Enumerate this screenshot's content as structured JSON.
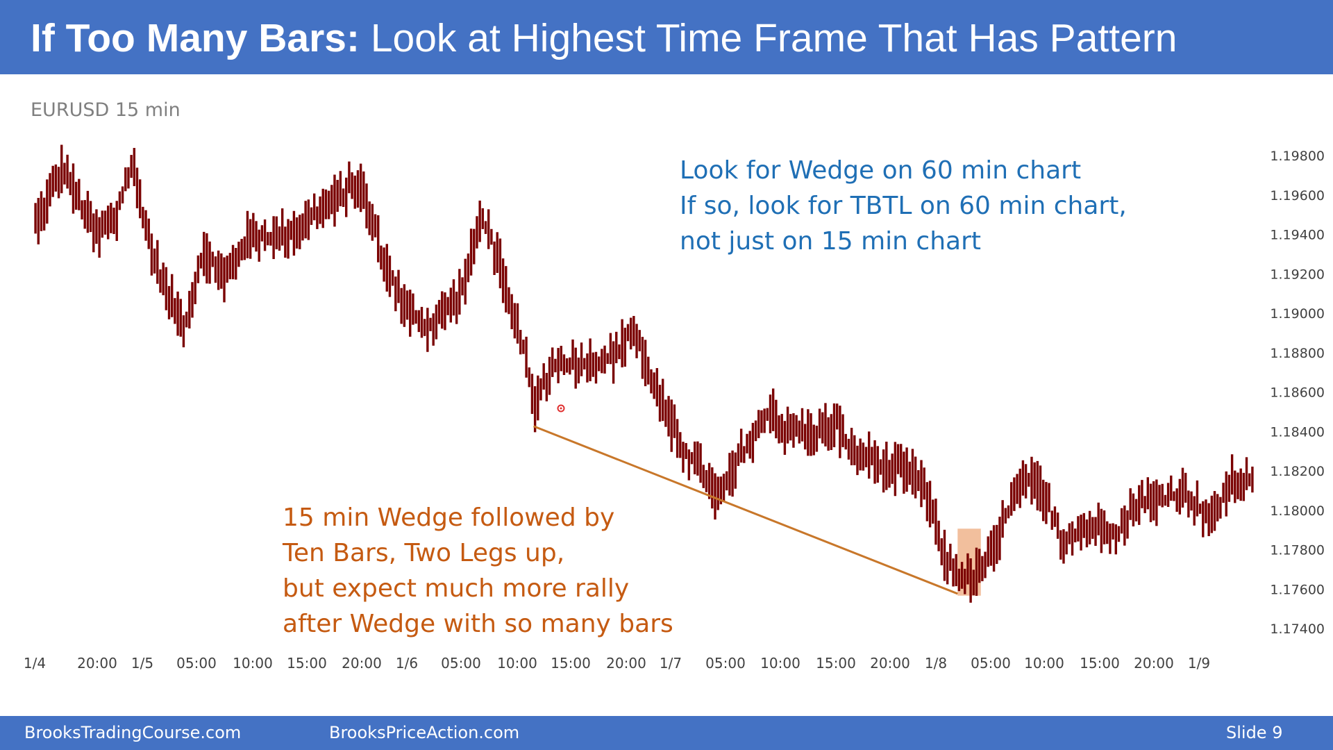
{
  "slide": {
    "title_bold": "If Too Many Bars:",
    "title_rest": "Look at Highest Time Frame That Has Pattern",
    "footer_left": "BrooksTradingCourse.com",
    "footer_center": "BrooksPriceAction.com",
    "footer_right": "Slide  9"
  },
  "notes": {
    "blue_lines": [
      "Look for Wedge on 60 min chart",
      "If so, look for TBTL on 60 min chart,",
      "not just on 15 min chart"
    ],
    "orange_lines": [
      "15 min Wedge followed by",
      "Ten Bars, Two Legs up,",
      "but expect much more rally",
      "after Wedge with so many bars"
    ]
  },
  "colors": {
    "header": "#4472c4",
    "bars": "#7a0000",
    "blue_text": "#1f6fb5",
    "orange_text": "#c55a11",
    "trendline": "#c8772a",
    "highlight": "#f0b48c"
  },
  "chart_data": {
    "type": "bar",
    "title": "EURUSD 15 min",
    "y_ticks": [
      "1.19800",
      "1.19600",
      "1.19400",
      "1.19200",
      "1.19000",
      "1.18800",
      "1.18600",
      "1.18400",
      "1.18200",
      "1.18000",
      "1.17800",
      "1.17600",
      "1.17400"
    ],
    "ylim": [
      1.174,
      1.198
    ],
    "x_ticks": [
      "1/4",
      "20:00",
      "1/5",
      "05:00",
      "10:00",
      "15:00",
      "20:00",
      "1/6",
      "05:00",
      "10:00",
      "15:00",
      "20:00",
      "1/7",
      "05:00",
      "10:00",
      "15:00",
      "20:00",
      "1/8",
      "05:00",
      "10:00",
      "15:00",
      "20:00",
      "1/9"
    ],
    "price_path": [
      [
        0,
        1.1945
      ],
      [
        6,
        1.1962
      ],
      [
        10,
        1.1975
      ],
      [
        16,
        1.1955
      ],
      [
        22,
        1.194
      ],
      [
        28,
        1.1948
      ],
      [
        34,
        1.1976
      ],
      [
        40,
        1.1935
      ],
      [
        46,
        1.191
      ],
      [
        52,
        1.1895
      ],
      [
        58,
        1.1932
      ],
      [
        66,
        1.1918
      ],
      [
        74,
        1.194
      ],
      [
        82,
        1.1938
      ],
      [
        92,
        1.1945
      ],
      [
        104,
        1.1958
      ],
      [
        112,
        1.1968
      ],
      [
        120,
        1.193
      ],
      [
        128,
        1.1902
      ],
      [
        136,
        1.1893
      ],
      [
        144,
        1.1905
      ],
      [
        148,
        1.1915
      ],
      [
        154,
        1.195
      ],
      [
        160,
        1.1928
      ],
      [
        164,
        1.19
      ],
      [
        168,
        1.1888
      ],
      [
        172,
        1.1852
      ],
      [
        178,
        1.1873
      ],
      [
        186,
        1.1875
      ],
      [
        194,
        1.1876
      ],
      [
        200,
        1.1878
      ],
      [
        206,
        1.1893
      ],
      [
        212,
        1.187
      ],
      [
        218,
        1.1848
      ],
      [
        224,
        1.183
      ],
      [
        230,
        1.182
      ],
      [
        236,
        1.1805
      ],
      [
        244,
        1.183
      ],
      [
        250,
        1.184
      ],
      [
        254,
        1.1855
      ],
      [
        258,
        1.184
      ],
      [
        264,
        1.184
      ],
      [
        270,
        1.184
      ],
      [
        276,
        1.1845
      ],
      [
        282,
        1.1828
      ],
      [
        288,
        1.1827
      ],
      [
        294,
        1.1822
      ],
      [
        300,
        1.182
      ],
      [
        306,
        1.1815
      ],
      [
        310,
        1.1795
      ],
      [
        314,
        1.1775
      ],
      [
        318,
        1.1768
      ],
      [
        322,
        1.1765
      ],
      [
        326,
        1.177
      ],
      [
        330,
        1.1778
      ],
      [
        334,
        1.1795
      ],
      [
        338,
        1.1808
      ],
      [
        342,
        1.1815
      ],
      [
        346,
        1.1812
      ],
      [
        350,
        1.18
      ],
      [
        354,
        1.1785
      ],
      [
        360,
        1.179
      ],
      [
        368,
        1.1792
      ],
      [
        374,
        1.179
      ],
      [
        380,
        1.1805
      ],
      [
        388,
        1.1805
      ],
      [
        396,
        1.181
      ],
      [
        402,
        1.18
      ],
      [
        406,
        1.1795
      ],
      [
        412,
        1.1815
      ],
      [
        420,
        1.1815
      ]
    ],
    "annotations": {
      "trendline": {
        "from_bar": 172,
        "from_price": 1.1843,
        "to_bar": 318,
        "to_price": 1.1758
      },
      "highlight": {
        "from_bar": 318,
        "to_bar": 326,
        "low": 1.1757,
        "high": 1.1791
      }
    }
  }
}
